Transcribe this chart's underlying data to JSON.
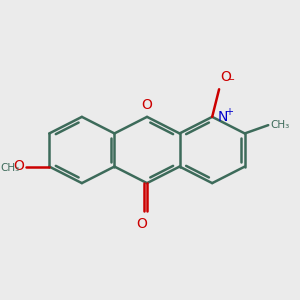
{
  "bg_color": "#ebebeb",
  "bond_color": "#3d6b5a",
  "bond_width": 1.8,
  "O_color": "#cc0000",
  "N_color": "#0000cc",
  "font_size_atoms": 10,
  "font_size_small": 7,
  "xlim": [
    0,
    10
  ],
  "ylim": [
    0,
    10
  ]
}
